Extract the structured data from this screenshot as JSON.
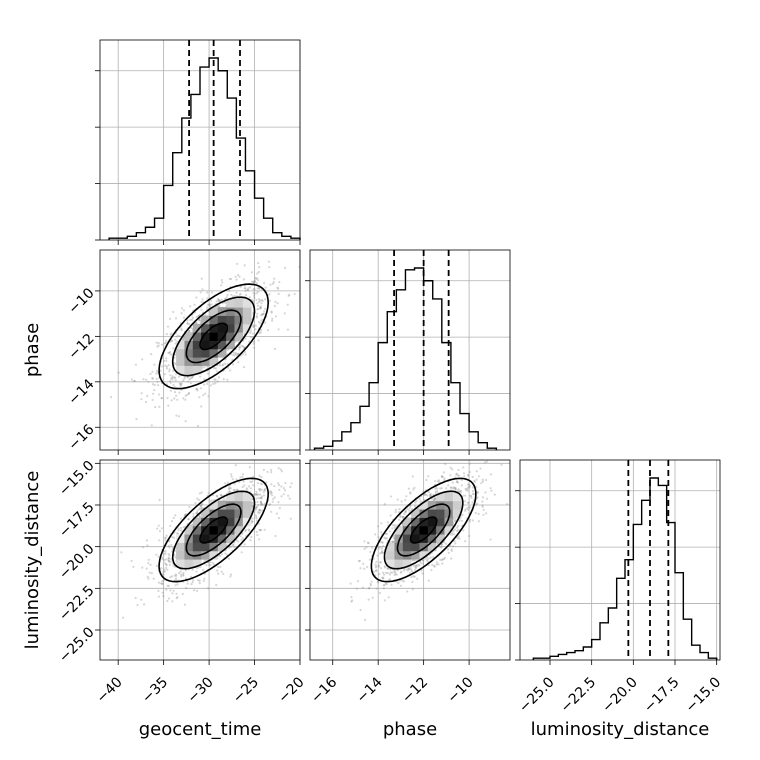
{
  "chart_data": {
    "type": "corner",
    "parameters": [
      "geocent_time",
      "phase",
      "luminosity_distance"
    ],
    "axis_labels": {
      "geocent_time": "geocent_time",
      "phase": "phase",
      "luminosity_distance": "luminosity_distance"
    },
    "ranges": {
      "geocent_time": [
        -42.0,
        -20.0
      ],
      "phase": [
        -17.0,
        -8.2
      ],
      "luminosity_distance": [
        -26.8,
        -14.8
      ]
    },
    "ticks": {
      "geocent_time": [
        -40,
        -35,
        -30,
        -25,
        -20
      ],
      "phase": [
        -16,
        -14,
        -12,
        -10
      ],
      "luminosity_distance": [
        -25.0,
        -22.5,
        -20.0,
        -17.5,
        -15.0
      ]
    },
    "tick_labels": {
      "geocent_time": [
        "−40",
        "−35",
        "−30",
        "−25",
        "−20"
      ],
      "phase": [
        "−16",
        "−14",
        "−12",
        "−10"
      ],
      "luminosity_distance": [
        "−25.0",
        "−22.5",
        "−20.0",
        "−17.5",
        "−15.0"
      ]
    },
    "grid": true,
    "marginals": {
      "geocent_time": {
        "bin_edges": [
          -41,
          -40,
          -39,
          -38,
          -37,
          -36,
          -35,
          -34,
          -33,
          -32,
          -31,
          -30,
          -29,
          -28,
          -27,
          -26,
          -25,
          -24,
          -23,
          -22,
          -21,
          -20
        ],
        "counts": [
          0.01,
          0.01,
          0.02,
          0.04,
          0.07,
          0.12,
          0.3,
          0.48,
          0.67,
          0.8,
          0.95,
          1.0,
          0.93,
          0.78,
          0.56,
          0.38,
          0.23,
          0.12,
          0.04,
          0.02,
          0.01
        ],
        "quantiles": [
          -32.2,
          -29.5,
          -26.6
        ]
      },
      "phase": {
        "bin_edges": [
          -16.8,
          -16.4,
          -16.0,
          -15.6,
          -15.2,
          -14.8,
          -14.4,
          -14.0,
          -13.6,
          -13.2,
          -12.8,
          -12.4,
          -12.0,
          -11.6,
          -11.2,
          -10.8,
          -10.4,
          -10.0,
          -9.6,
          -9.2,
          -8.8
        ],
        "counts": [
          0.01,
          0.02,
          0.05,
          0.1,
          0.15,
          0.24,
          0.37,
          0.59,
          0.76,
          0.88,
          0.99,
          1.0,
          0.93,
          0.83,
          0.59,
          0.37,
          0.2,
          0.1,
          0.04,
          0.01
        ],
        "quantiles": [
          -13.3,
          -12.0,
          -10.9
        ]
      },
      "luminosity_distance": {
        "bin_edges": [
          -26.0,
          -25.5,
          -25.0,
          -24.5,
          -24.0,
          -23.5,
          -23.0,
          -22.5,
          -22.0,
          -21.5,
          -21.0,
          -20.5,
          -20.0,
          -19.5,
          -19.0,
          -18.5,
          -18.0,
          -17.5,
          -17.0,
          -16.5,
          -16.0,
          -15.5,
          -15.0
        ],
        "counts": [
          0.01,
          0.01,
          0.02,
          0.03,
          0.04,
          0.05,
          0.07,
          0.11,
          0.2,
          0.28,
          0.44,
          0.54,
          0.73,
          0.86,
          0.98,
          0.94,
          0.74,
          0.47,
          0.22,
          0.08,
          0.04,
          0.01
        ],
        "quantiles": [
          -20.3,
          -19.0,
          -17.9
        ]
      }
    },
    "joints": [
      {
        "x": "geocent_time",
        "y": "phase",
        "center": [
          -29.5,
          -12.0
        ],
        "sigma": [
          3.0,
          1.15
        ],
        "rho": 0.65
      },
      {
        "x": "geocent_time",
        "y": "luminosity_distance",
        "center": [
          -29.5,
          -19.0
        ],
        "sigma": [
          3.0,
          1.55
        ],
        "rho": 0.7
      },
      {
        "x": "phase",
        "y": "luminosity_distance",
        "center": [
          -12.0,
          -19.0
        ],
        "sigma": [
          1.15,
          1.55
        ],
        "rho": 0.7
      }
    ],
    "contour_levels_sigma": [
      0.5,
      1.0,
      1.5,
      2.0
    ]
  }
}
